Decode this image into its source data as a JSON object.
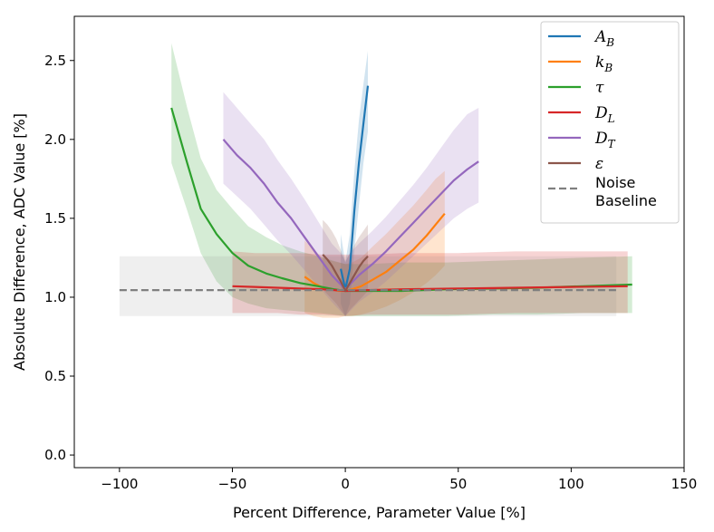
{
  "chart_data": {
    "type": "line",
    "title": "",
    "xlabel": "Percent Difference, Parameter Value [%]",
    "ylabel": "Absolute Difference, ADC Value [%]",
    "xlim": [
      -120,
      150
    ],
    "ylim": [
      -0.08,
      2.78
    ],
    "xticks": [
      -100,
      -50,
      0,
      50,
      100,
      150
    ],
    "xtick_labels": [
      "−100",
      "−50",
      "0",
      "50",
      "100",
      "150"
    ],
    "yticks": [
      0.0,
      0.5,
      1.0,
      1.5,
      2.0,
      2.5
    ],
    "ytick_labels": [
      "0.0",
      "0.5",
      "1.0",
      "1.5",
      "2.0",
      "2.5"
    ],
    "grid": false,
    "legend_position": "top-right",
    "series": [
      {
        "name": "A_B",
        "label_main": "A",
        "label_sub": "B",
        "color": "#1f77b4",
        "x": [
          -2,
          0,
          2,
          4,
          6,
          8,
          10
        ],
        "y": [
          1.18,
          1.05,
          1.18,
          1.55,
          1.85,
          2.1,
          2.34
        ],
        "band_lower": [
          0.96,
          0.88,
          0.96,
          1.3,
          1.58,
          1.85,
          2.05
        ],
        "band_upper": [
          1.4,
          1.22,
          1.4,
          1.8,
          2.12,
          2.35,
          2.56
        ]
      },
      {
        "name": "k_B",
        "label_main": "k",
        "label_sub": "B",
        "color": "#ff7f0e",
        "x": [
          -18,
          -14,
          -10,
          -6,
          -3,
          0,
          3,
          7,
          12,
          18,
          24,
          30,
          36,
          40,
          44
        ],
        "y": [
          1.13,
          1.09,
          1.06,
          1.05,
          1.04,
          1.04,
          1.05,
          1.07,
          1.11,
          1.16,
          1.23,
          1.3,
          1.39,
          1.46,
          1.53
        ],
        "band_lower": [
          0.9,
          0.88,
          0.87,
          0.87,
          0.87,
          0.88,
          0.88,
          0.89,
          0.91,
          0.94,
          0.98,
          1.03,
          1.09,
          1.14,
          1.2
        ],
        "band_upper": [
          1.36,
          1.3,
          1.25,
          1.23,
          1.22,
          1.21,
          1.22,
          1.25,
          1.32,
          1.4,
          1.49,
          1.58,
          1.68,
          1.75,
          1.8
        ]
      },
      {
        "name": "tau",
        "label_main": "τ",
        "label_sub": "",
        "color": "#2ca02c",
        "x": [
          -77,
          -70,
          -64,
          -57,
          -50,
          -43,
          -35,
          -28,
          -20,
          -12,
          -5,
          0,
          10,
          25,
          45,
          65,
          85,
          105,
          127
        ],
        "y": [
          2.2,
          1.85,
          1.56,
          1.4,
          1.28,
          1.2,
          1.15,
          1.12,
          1.09,
          1.07,
          1.05,
          1.04,
          1.04,
          1.04,
          1.05,
          1.055,
          1.06,
          1.07,
          1.08
        ],
        "band_lower": [
          1.85,
          1.55,
          1.28,
          1.1,
          1.0,
          0.96,
          0.93,
          0.92,
          0.91,
          0.9,
          0.89,
          0.88,
          0.88,
          0.88,
          0.88,
          0.89,
          0.89,
          0.9,
          0.9
        ],
        "band_upper": [
          2.61,
          2.2,
          1.88,
          1.68,
          1.56,
          1.45,
          1.38,
          1.33,
          1.29,
          1.26,
          1.23,
          1.21,
          1.21,
          1.22,
          1.22,
          1.23,
          1.24,
          1.25,
          1.26
        ]
      },
      {
        "name": "D_L",
        "label_main": "D",
        "label_sub": "L",
        "color": "#d62728",
        "x": [
          -50,
          -40,
          -30,
          -20,
          -10,
          0,
          10,
          25,
          50,
          75,
          100,
          125
        ],
        "y": [
          1.07,
          1.065,
          1.06,
          1.055,
          1.05,
          1.04,
          1.045,
          1.05,
          1.055,
          1.06,
          1.065,
          1.07
        ],
        "band_lower": [
          0.9,
          0.9,
          0.9,
          0.89,
          0.89,
          0.88,
          0.89,
          0.89,
          0.89,
          0.9,
          0.9,
          0.9
        ],
        "band_upper": [
          1.29,
          1.28,
          1.28,
          1.28,
          1.27,
          1.27,
          1.27,
          1.28,
          1.28,
          1.29,
          1.29,
          1.29
        ]
      },
      {
        "name": "D_T",
        "label_main": "D",
        "label_sub": "T",
        "color": "#9467bd",
        "x": [
          -54,
          -48,
          -42,
          -36,
          -30,
          -24,
          -18,
          -12,
          -6,
          -2,
          0,
          2,
          6,
          12,
          18,
          24,
          30,
          36,
          42,
          48,
          54,
          59
        ],
        "y": [
          2.0,
          1.9,
          1.82,
          1.72,
          1.6,
          1.5,
          1.38,
          1.26,
          1.14,
          1.08,
          1.05,
          1.08,
          1.14,
          1.21,
          1.29,
          1.38,
          1.47,
          1.56,
          1.65,
          1.74,
          1.81,
          1.86
        ],
        "band_lower": [
          1.72,
          1.64,
          1.56,
          1.46,
          1.36,
          1.27,
          1.17,
          1.07,
          0.97,
          0.91,
          0.88,
          0.91,
          0.97,
          1.03,
          1.1,
          1.18,
          1.26,
          1.34,
          1.42,
          1.5,
          1.56,
          1.6
        ],
        "band_upper": [
          2.3,
          2.2,
          2.1,
          2.0,
          1.87,
          1.75,
          1.62,
          1.48,
          1.34,
          1.28,
          1.23,
          1.28,
          1.34,
          1.42,
          1.51,
          1.61,
          1.71,
          1.82,
          1.94,
          2.06,
          2.16,
          2.2
        ]
      },
      {
        "name": "epsilon",
        "label_main": "ε",
        "label_sub": "",
        "color": "#8c564b",
        "x": [
          -10,
          -8,
          -6,
          -4,
          -2,
          0,
          2,
          4,
          6,
          8,
          10
        ],
        "y": [
          1.27,
          1.24,
          1.2,
          1.15,
          1.1,
          1.04,
          1.09,
          1.14,
          1.19,
          1.23,
          1.26
        ],
        "band_lower": [
          1.05,
          1.02,
          0.99,
          0.96,
          0.92,
          0.88,
          0.92,
          0.95,
          0.98,
          1.01,
          1.04
        ],
        "band_upper": [
          1.49,
          1.46,
          1.42,
          1.37,
          1.3,
          1.22,
          1.28,
          1.33,
          1.38,
          1.42,
          1.46
        ]
      },
      {
        "name": "Noise Baseline",
        "label_main": "Noise",
        "label_line2": "Baseline",
        "label_sub": "",
        "color": "#7f7f7f",
        "dashed": true,
        "x": [
          -100,
          120
        ],
        "y": [
          1.045,
          1.045
        ],
        "band_lower": [
          0.88,
          0.88
        ],
        "band_upper": [
          1.26,
          1.26
        ]
      }
    ]
  }
}
